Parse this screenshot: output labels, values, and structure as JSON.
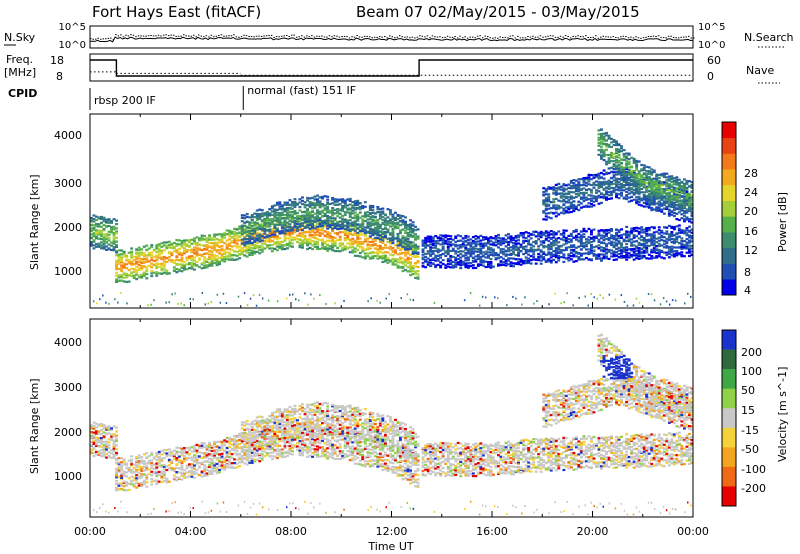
{
  "figure": {
    "title_left": "Fort Hays East (fitACF)",
    "title_right": "Beam 07 02/May/2015 - 03/May/2015",
    "x_axis_label": "Time UT",
    "x_ticks": [
      "00:00",
      "04:00",
      "08:00",
      "12:00",
      "16:00",
      "20:00",
      "00:00"
    ]
  },
  "top_panels": {
    "nsky": {
      "left_label": "N.Sky",
      "right_label": "N.Search",
      "left_ticks": [
        "10^5",
        "10^0"
      ],
      "right_ticks": [
        "10^5",
        "10^0"
      ]
    },
    "freq": {
      "left_label_1": "Freq.",
      "left_label_2": "[MHz]",
      "left_ticks": [
        "18",
        "8"
      ],
      "right_label": "Nave",
      "right_ticks": [
        "60",
        "0"
      ]
    },
    "cpid": {
      "label": "CPID",
      "modes": [
        {
          "name": "rbsp 200 IF",
          "start_hour": 0,
          "end_hour": 6
        },
        {
          "name": "normal (fast) 151 IF",
          "start_hour": 6,
          "end_hour": 24
        }
      ]
    }
  },
  "power_panel": {
    "ylabel": "Slant Range [km]",
    "y_ticks": [
      "1000",
      "2000",
      "3000",
      "4000"
    ],
    "colorbar_label": "Power [dB]",
    "colorbar_ticks": [
      "28",
      "24",
      "20",
      "16",
      "12",
      "8",
      "4"
    ],
    "colors": [
      "#0000e6",
      "#1f4fb4",
      "#2e6e8a",
      "#3d8c6d",
      "#56b04a",
      "#a4cf3a",
      "#e6d42a",
      "#f2a81f",
      "#f27a18",
      "#e84312",
      "#e60000"
    ]
  },
  "velocity_panel": {
    "ylabel": "Slant Range [km]",
    "y_ticks": [
      "1000",
      "2000",
      "3000",
      "4000"
    ],
    "colorbar_label": "Velocity [m s^-1]",
    "colorbar_ticks": [
      "200",
      "100",
      "50",
      "15",
      "-15",
      "-50",
      "-100",
      "-200"
    ],
    "colors": [
      "#1a33cc",
      "#2f6a3e",
      "#3ea846",
      "#8fd24a",
      "#c8c8c8",
      "#f4d23a",
      "#f2a51f",
      "#f06a16",
      "#e60000"
    ]
  },
  "chart_data": {
    "type": "heatmap",
    "x_range_hours": [
      0,
      24
    ],
    "y_range_km": [
      180,
      4500
    ],
    "cpid_boundaries_hours": [
      6.1
    ],
    "frequency_mhz": [
      {
        "start_hour": 0,
        "end_hour": 1.05,
        "value": 18
      },
      {
        "start_hour": 1.05,
        "end_hour": 13.1,
        "value": 10
      },
      {
        "start_hour": 13.1,
        "end_hour": 24,
        "value": 18
      }
    ],
    "nave": [
      {
        "start_hour": 0,
        "end_hour": 1.05,
        "value": 22
      },
      {
        "start_hour": 1.05,
        "end_hour": 6,
        "value": 18
      },
      {
        "start_hour": 6,
        "end_hour": 24,
        "value": 13
      }
    ],
    "power_bands": [
      {
        "hours": [
          1,
          3,
          5,
          6.5,
          8,
          10,
          12,
          13
        ],
        "range_km": [
          1100,
          1300,
          1500,
          1750,
          1900,
          1800,
          1500,
          1200
        ],
        "dB": 24
      },
      {
        "hours": [
          6,
          7.5,
          9,
          10.5,
          12,
          13
        ],
        "range_km": [
          1900,
          2200,
          2350,
          2250,
          2000,
          1700
        ],
        "dB": 12
      },
      {
        "hours": [
          0,
          1
        ],
        "range_km": [
          1900,
          1800
        ],
        "dB": 16
      },
      {
        "hours": [
          13.2,
          16,
          18,
          20,
          22,
          24
        ],
        "range_km": [
          1450,
          1450,
          1550,
          1600,
          1650,
          1700
        ],
        "dB": 6
      },
      {
        "hours": [
          18,
          19.5,
          21,
          22.5,
          24
        ],
        "range_km": [
          2500,
          2750,
          3000,
          2700,
          2400
        ],
        "dB": 8
      },
      {
        "hours": [
          20.2,
          21,
          22,
          23,
          24
        ],
        "range_km": [
          3900,
          3500,
          3000,
          2800,
          2650
        ],
        "dB": 14
      }
    ]
  }
}
